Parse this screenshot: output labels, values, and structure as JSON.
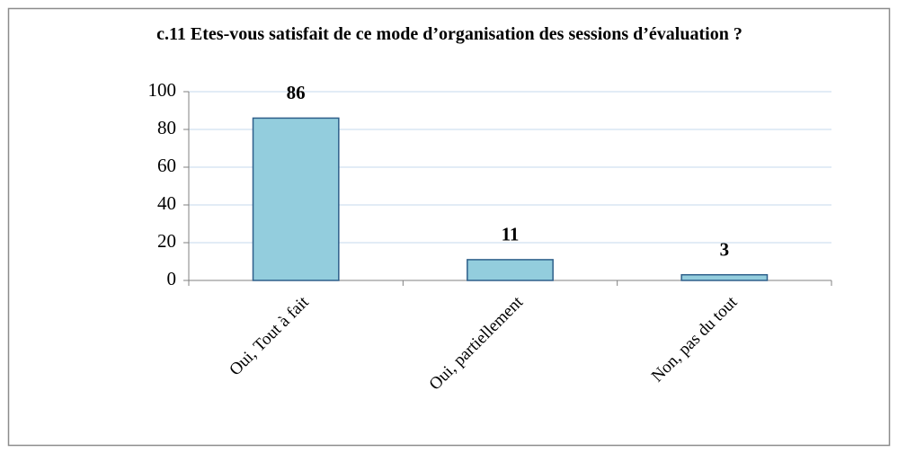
{
  "chart_data": {
    "type": "bar",
    "title": "c.11 Etes-vous satisfait de ce mode d’organisation des sessions d’évaluation ?",
    "categories": [
      "Oui, Tout à fait",
      "Oui, partiellement",
      "Non, pas du tout"
    ],
    "values": [
      86,
      11,
      3
    ],
    "color": "#93cddd",
    "ylim": [
      0,
      100
    ],
    "yticks": [
      0,
      20,
      40,
      60,
      80,
      100
    ],
    "grid": true
  }
}
